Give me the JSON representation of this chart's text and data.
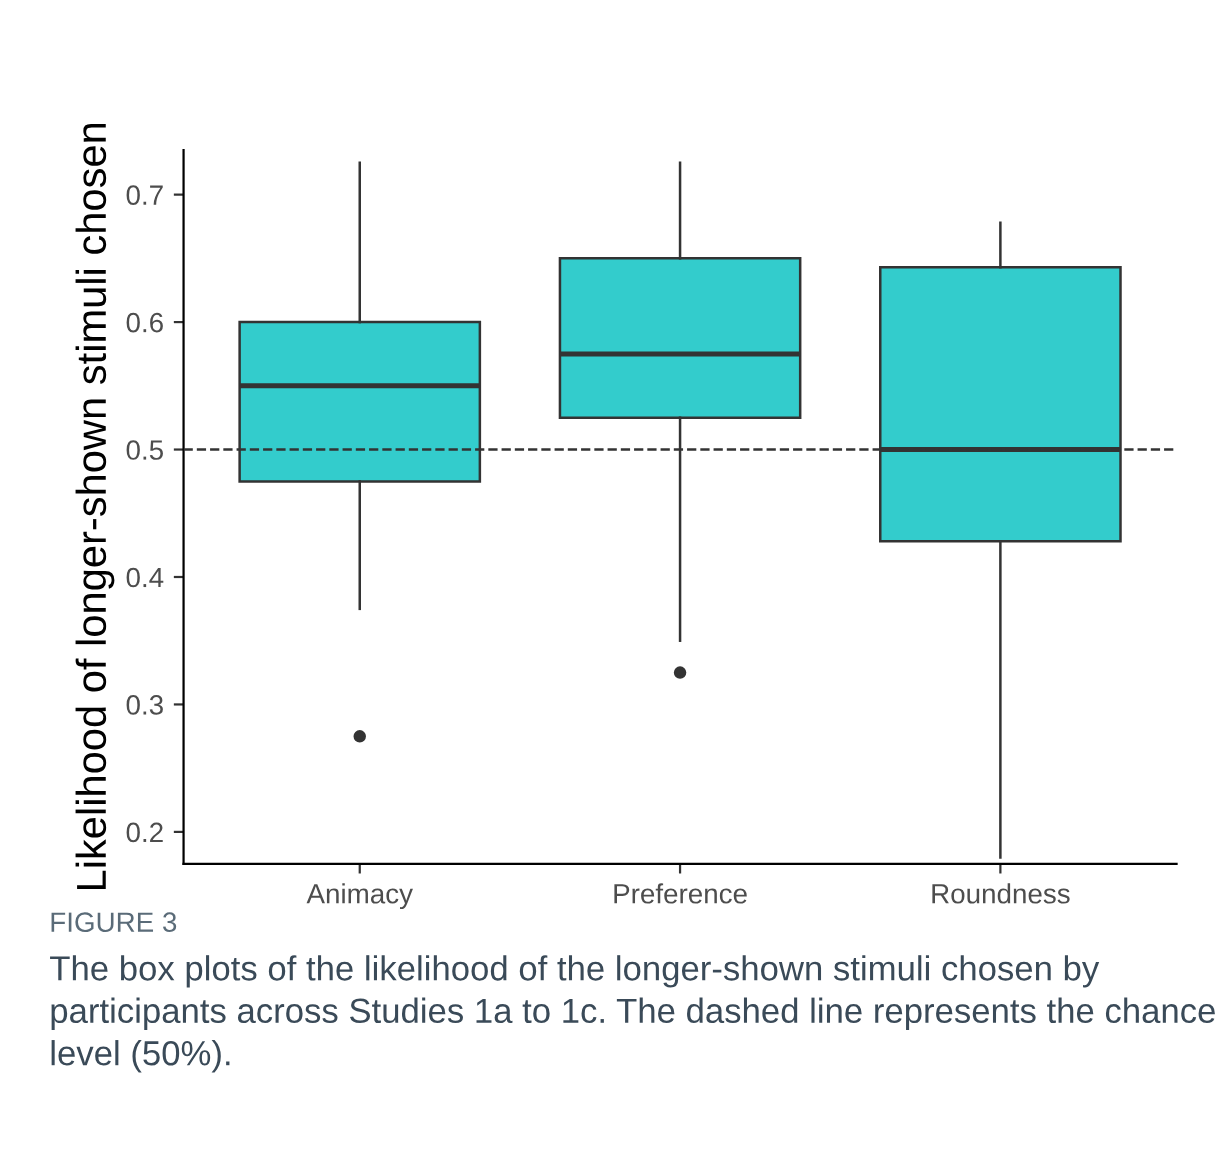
{
  "chart_data": {
    "type": "box",
    "ylabel": "Likelihood of longer-shown stimuli chosen",
    "categories": [
      "Animacy",
      "Preference",
      "Roundness"
    ],
    "boxes": [
      {
        "low": 0.375,
        "q1": 0.475,
        "median": 0.55,
        "q3": 0.6,
        "high": 0.725,
        "outliers": [
          0.275
        ]
      },
      {
        "low": 0.35,
        "q1": 0.525,
        "median": 0.575,
        "q3": 0.65,
        "high": 0.725,
        "outliers": [
          0.325
        ]
      },
      {
        "low": 0.18,
        "q1": 0.428,
        "median": 0.5,
        "q3": 0.643,
        "high": 0.678
      }
    ],
    "color": "#33cccc",
    "ylim": [
      0.175,
      0.735
    ],
    "yticks": [
      {
        "value": 0.2,
        "label": "0.2"
      },
      {
        "value": 0.3,
        "label": "0.3"
      },
      {
        "value": 0.4,
        "label": "0.4"
      },
      {
        "value": 0.5,
        "label": "0.5"
      },
      {
        "value": 0.6,
        "label": "0.6"
      },
      {
        "value": 0.7,
        "label": "0.7"
      }
    ],
    "grid": false,
    "ref_lines": [
      {
        "axis": "y",
        "value": 0.5,
        "line_style": "dashed",
        "color": "#333333"
      }
    ],
    "annotations": [
      "FIGURE 3",
      "The box plots of the likelihood of the longer-shown stimuli chosen by participants across Studies 1a to 1c. The dashed line represents the chance level (50%)."
    ]
  }
}
